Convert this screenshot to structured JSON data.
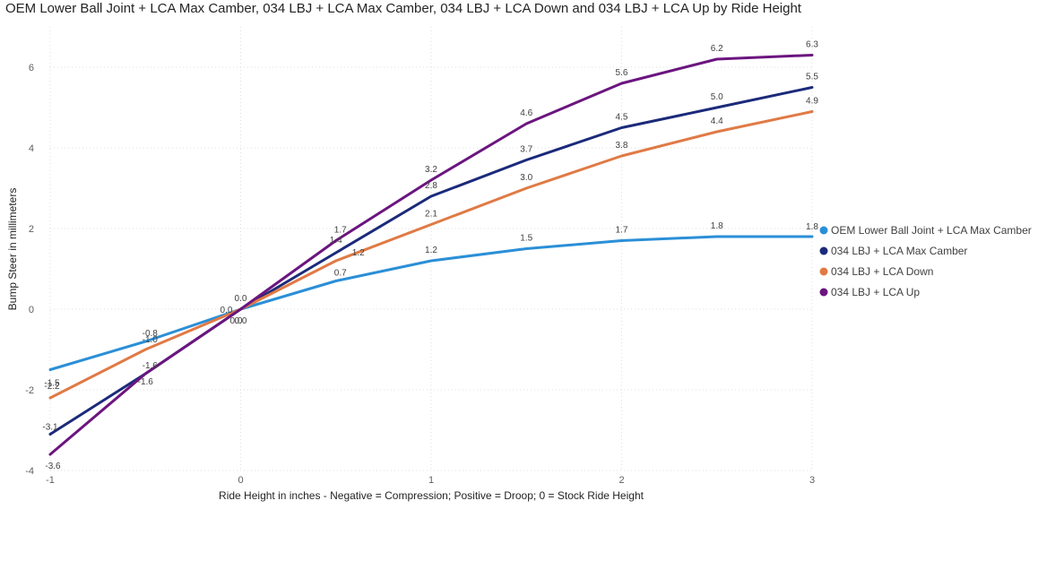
{
  "chart_data": {
    "type": "line",
    "title": "OEM Lower Ball Joint + LCA Max Camber, 034 LBJ + LCA Max Camber, 034 LBJ + LCA Down and 034 LBJ + LCA Up by Ride Height",
    "xlabel": "Ride Height in inches - Negative = Compression; Positive = Droop; 0 = Stock Ride Height",
    "ylabel": "Bump Steer in millimeters",
    "x": [
      -1,
      -0.5,
      0,
      0.5,
      1,
      1.5,
      2,
      2.5,
      3
    ],
    "xlim": [
      -1,
      3
    ],
    "ylim": [
      -4,
      7
    ],
    "xticks": [
      "-1",
      "0",
      "1",
      "2",
      "3"
    ],
    "yticks": [
      "-4",
      "-2",
      "0",
      "2",
      "4",
      "6"
    ],
    "grid": true,
    "legend_position": "right",
    "series": [
      {
        "name": "OEM Lower Ball Joint + LCA Max Camber",
        "color": "#2b8fd7",
        "values": [
          -1.5,
          -0.8,
          0.0,
          0.7,
          1.2,
          1.5,
          1.7,
          1.8,
          1.8
        ],
        "labels": [
          "-1.5",
          "-0.8",
          "0.0",
          "0.7",
          "1.2",
          "1.5",
          "1.7",
          "1.8",
          "1.8"
        ]
      },
      {
        "name": "034 LBJ + LCA Max Camber",
        "color": "#1b2a7a",
        "values": [
          -3.1,
          -1.6,
          0.0,
          1.4,
          2.8,
          3.7,
          4.5,
          5.0,
          5.5
        ],
        "labels": [
          "-3.1",
          "-1.6",
          "0.0",
          "1.4",
          "2.8",
          "3.7",
          "4.5",
          "5.0",
          "5.5"
        ]
      },
      {
        "name": "034 LBJ + LCA Down",
        "color": "#e07a45",
        "values": [
          -2.2,
          -1.0,
          0.0,
          1.2,
          2.1,
          3.0,
          3.8,
          4.4,
          4.9
        ],
        "labels": [
          "-2.2",
          "-1.0",
          "0.0",
          "1.2",
          "2.1",
          "3.0",
          "3.8",
          "4.4",
          "4.9"
        ]
      },
      {
        "name": "034 LBJ + LCA Up",
        "color": "#6b157f",
        "values": [
          -3.6,
          -1.6,
          0.0,
          1.7,
          3.2,
          4.6,
          5.6,
          6.2,
          6.3
        ],
        "labels": [
          "-3.6",
          "-1.6",
          "0.0",
          "1.7",
          "3.2",
          "4.6",
          "5.6",
          "6.2",
          "6.3"
        ]
      }
    ]
  }
}
